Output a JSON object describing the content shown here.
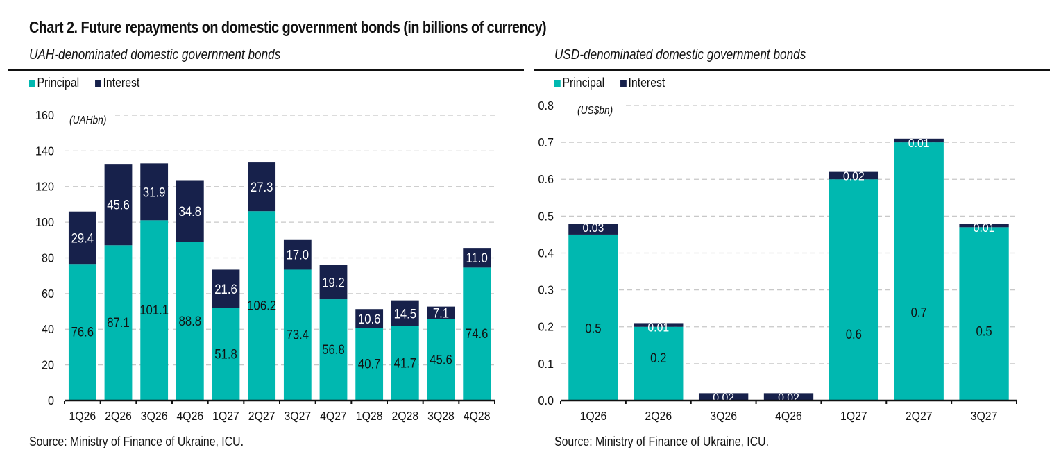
{
  "title": "Chart 2. Future repayments on domestic government bonds (in billions of currency)",
  "colors": {
    "principal": "#00b8b0",
    "interest": "#17214b",
    "grid": "#c8c8c8",
    "axis": "#111111"
  },
  "chart_data": [
    {
      "type": "bar",
      "stacked": true,
      "title": "UAH-denominated domestic government bonds",
      "unit_label": "(UAHbn)",
      "legend": [
        "Principal",
        "Interest"
      ],
      "legend_position": "top-left",
      "categories": [
        "1Q26",
        "2Q26",
        "3Q26",
        "4Q26",
        "1Q27",
        "2Q27",
        "3Q27",
        "4Q27",
        "1Q28",
        "2Q28",
        "3Q28",
        "4Q28"
      ],
      "series": [
        {
          "name": "Principal",
          "values": [
            76.6,
            87.1,
            101.1,
            88.8,
            51.8,
            106.2,
            73.4,
            56.8,
            40.7,
            41.7,
            45.6,
            74.6
          ]
        },
        {
          "name": "Interest",
          "values": [
            29.4,
            45.6,
            31.9,
            34.8,
            21.6,
            27.3,
            17.0,
            19.2,
            10.6,
            14.5,
            7.1,
            11.0
          ]
        }
      ],
      "data_labels": {
        "Principal": [
          "76.6",
          "87.1",
          "101.1",
          "88.8",
          "51.8",
          "106.2",
          "73.4",
          "56.8",
          "40.7",
          "41.7",
          "45.6",
          "74.6"
        ],
        "Interest": [
          "29.4",
          "45.6",
          "31.9",
          "34.8",
          "21.6",
          "27.3",
          "17.0",
          "19.2",
          "10.6",
          "14.5",
          "7.1",
          "11.0"
        ]
      },
      "yticks": [
        "0",
        "20",
        "40",
        "60",
        "80",
        "100",
        "120",
        "140",
        "160"
      ],
      "ylim": [
        0,
        160
      ],
      "ystep": 20,
      "grid": true,
      "xlabel": "",
      "ylabel": "",
      "source": "Source: Ministry of Finance of Ukraine, ICU."
    },
    {
      "type": "bar",
      "stacked": true,
      "title": "USD-denominated domestic government bonds",
      "unit_label": "(US$bn)",
      "legend": [
        "Principal",
        "Interest"
      ],
      "legend_position": "top-left",
      "categories": [
        "1Q26",
        "2Q26",
        "3Q26",
        "4Q26",
        "1Q27",
        "2Q27",
        "3Q27"
      ],
      "series": [
        {
          "name": "Principal",
          "values": [
            0.45,
            0.2,
            0.0,
            0.0,
            0.6,
            0.7,
            0.47
          ]
        },
        {
          "name": "Interest",
          "values": [
            0.03,
            0.01,
            0.02,
            0.02,
            0.02,
            0.01,
            0.01
          ]
        }
      ],
      "data_labels": {
        "Principal": [
          "0.5",
          "0.2",
          "",
          "",
          "0.6",
          "0.7",
          "0.5"
        ],
        "Interest": [
          "0.03",
          "0.01",
          "0.02",
          "0.02",
          "0.02",
          "0.01",
          "0.01"
        ]
      },
      "yticks": [
        "0.0",
        "0.1",
        "0.2",
        "0.3",
        "0.4",
        "0.5",
        "0.6",
        "0.7",
        "0.8"
      ],
      "ylim": [
        0,
        0.8
      ],
      "ystep": 0.1,
      "grid": true,
      "xlabel": "",
      "ylabel": "",
      "source": "Source: Ministry of Finance of Ukraine, ICU."
    }
  ]
}
